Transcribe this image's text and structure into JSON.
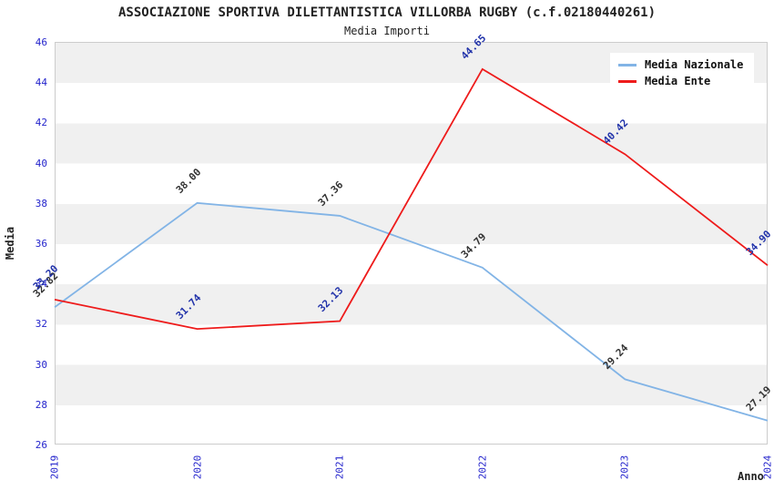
{
  "header": {
    "title": "ASSOCIAZIONE SPORTIVA DILETTANTISTICA VILLORBA RUGBY (c.f.02180440261)",
    "subtitle": "Media Importi"
  },
  "chart_data": {
    "type": "line",
    "title": "ASSOCIAZIONE SPORTIVA DILETTANTISTICA VILLORBA RUGBY (c.f.02180440261)",
    "subtitle": "Media Importi",
    "xlabel": "Anno",
    "ylabel": "Media",
    "categories": [
      "2019",
      "2020",
      "2021",
      "2022",
      "2023",
      "2024"
    ],
    "series": [
      {
        "name": "Media Nazionale",
        "color": "#82b4e6",
        "label_color": "#333333",
        "values": [
          32.82,
          38.0,
          37.36,
          34.79,
          29.24,
          27.19
        ],
        "labels": [
          "32.82",
          "38.00",
          "37.36",
          "34.79",
          "29.24",
          "27.19"
        ]
      },
      {
        "name": "Media Ente",
        "color": "#ee1b1b",
        "label_color": "#2233aa",
        "values": [
          33.2,
          31.74,
          32.13,
          44.65,
          40.42,
          34.9
        ],
        "labels": [
          "33.20",
          "31.74",
          "32.13",
          "44.65",
          "40.42",
          "34.90"
        ]
      }
    ],
    "ylim": [
      26,
      46
    ],
    "ytick_step": 2,
    "tick_color": "#2424cc",
    "band_colors": [
      "#f0f0f0",
      "#ffffff"
    ],
    "grid": "horizontal-bands",
    "legend_position": "top-right"
  }
}
